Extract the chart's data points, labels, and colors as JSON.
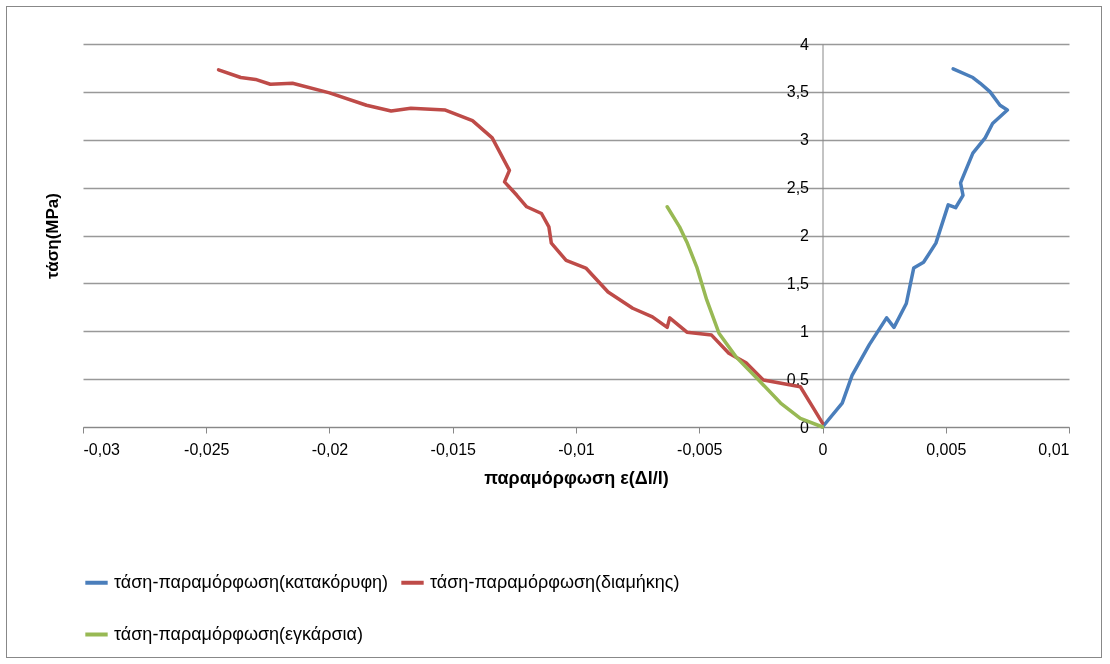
{
  "chart_data": {
    "type": "line",
    "xlabel": "παραμόρφωση ε(Δl/l)",
    "ylabel": "τάση(MPa)",
    "xlim": [
      -0.03,
      0.01
    ],
    "ylim": [
      0,
      4
    ],
    "xticks": [
      {
        "value": -0.03,
        "label": "-0,03"
      },
      {
        "value": -0.025,
        "label": "-0,025"
      },
      {
        "value": -0.02,
        "label": "-0,02"
      },
      {
        "value": -0.015,
        "label": "-0,015"
      },
      {
        "value": -0.01,
        "label": "-0,01"
      },
      {
        "value": -0.005,
        "label": "-0,005"
      },
      0,
      {
        "value": 0.005,
        "label": "0,005"
      },
      {
        "value": 0.01,
        "label": "0,01"
      }
    ],
    "yticks": [
      0,
      {
        "value": 0.5,
        "label": "0,5"
      },
      1,
      {
        "value": 1.5,
        "label": "1,5"
      },
      2,
      {
        "value": 2.5,
        "label": "2,5"
      },
      3,
      {
        "value": 3.5,
        "label": "3,5"
      },
      4
    ],
    "grid": "y",
    "legend": "bottom",
    "marker": "none",
    "line_style": "solid",
    "series": [
      {
        "name": "τάση-παραμόρφωση(κατακόρυφη)",
        "color": "#4a7ebb",
        "x": [
          0,
          0.0008,
          0.0012,
          0.0019,
          0.0026,
          0.0029,
          0.0034,
          0.0037,
          0.0041,
          0.0046,
          0.0051,
          0.0054,
          0.0057,
          0.0056,
          0.0061,
          0.0066,
          0.0069,
          0.0075,
          0.0072,
          0.0068,
          0.0064,
          0.0061,
          0.0053
        ],
        "values": [
          0,
          0.25,
          0.54,
          0.86,
          1.14,
          1.04,
          1.29,
          1.66,
          1.72,
          1.92,
          2.32,
          2.29,
          2.42,
          2.55,
          2.86,
          3.02,
          3.17,
          3.31,
          3.36,
          3.5,
          3.59,
          3.65,
          3.74
        ]
      },
      {
        "name": "τάση-παραμόρφωση(διαμήκης)",
        "color": "#be4b48",
        "x": [
          0,
          -0.0004,
          -0.0009,
          -0.0024,
          -0.0031,
          -0.0038,
          -0.0045,
          -0.0055,
          -0.0062,
          -0.0063,
          -0.0069,
          -0.0077,
          -0.0087,
          -0.0096,
          -0.0104,
          -0.011,
          -0.0111,
          -0.0114,
          -0.012,
          -0.0124,
          -0.0129,
          -0.0127,
          -0.0134,
          -0.0142,
          -0.0153,
          -0.0167,
          -0.0175,
          -0.0185,
          -0.02,
          -0.0215,
          -0.0224,
          -0.023,
          -0.0236,
          -0.0245
        ],
        "values": [
          0.04,
          0.21,
          0.42,
          0.49,
          0.67,
          0.77,
          0.96,
          0.99,
          1.14,
          1.04,
          1.15,
          1.24,
          1.41,
          1.66,
          1.74,
          1.92,
          2.09,
          2.23,
          2.3,
          2.42,
          2.56,
          2.68,
          3.02,
          3.2,
          3.31,
          3.33,
          3.3,
          3.36,
          3.49,
          3.59,
          3.58,
          3.63,
          3.65,
          3.73
        ]
      },
      {
        "name": "τάση-παραμόρφωση(εγκάρσια)",
        "color": "#98b954",
        "x": [
          0,
          -0.0009,
          -0.0017,
          -0.0027,
          -0.0035,
          -0.0042,
          -0.0047,
          -0.0051,
          -0.0055,
          -0.0058,
          -0.0063
        ],
        "values": [
          0,
          0.09,
          0.25,
          0.52,
          0.73,
          0.98,
          1.33,
          1.67,
          1.93,
          2.09,
          2.3
        ]
      }
    ]
  }
}
